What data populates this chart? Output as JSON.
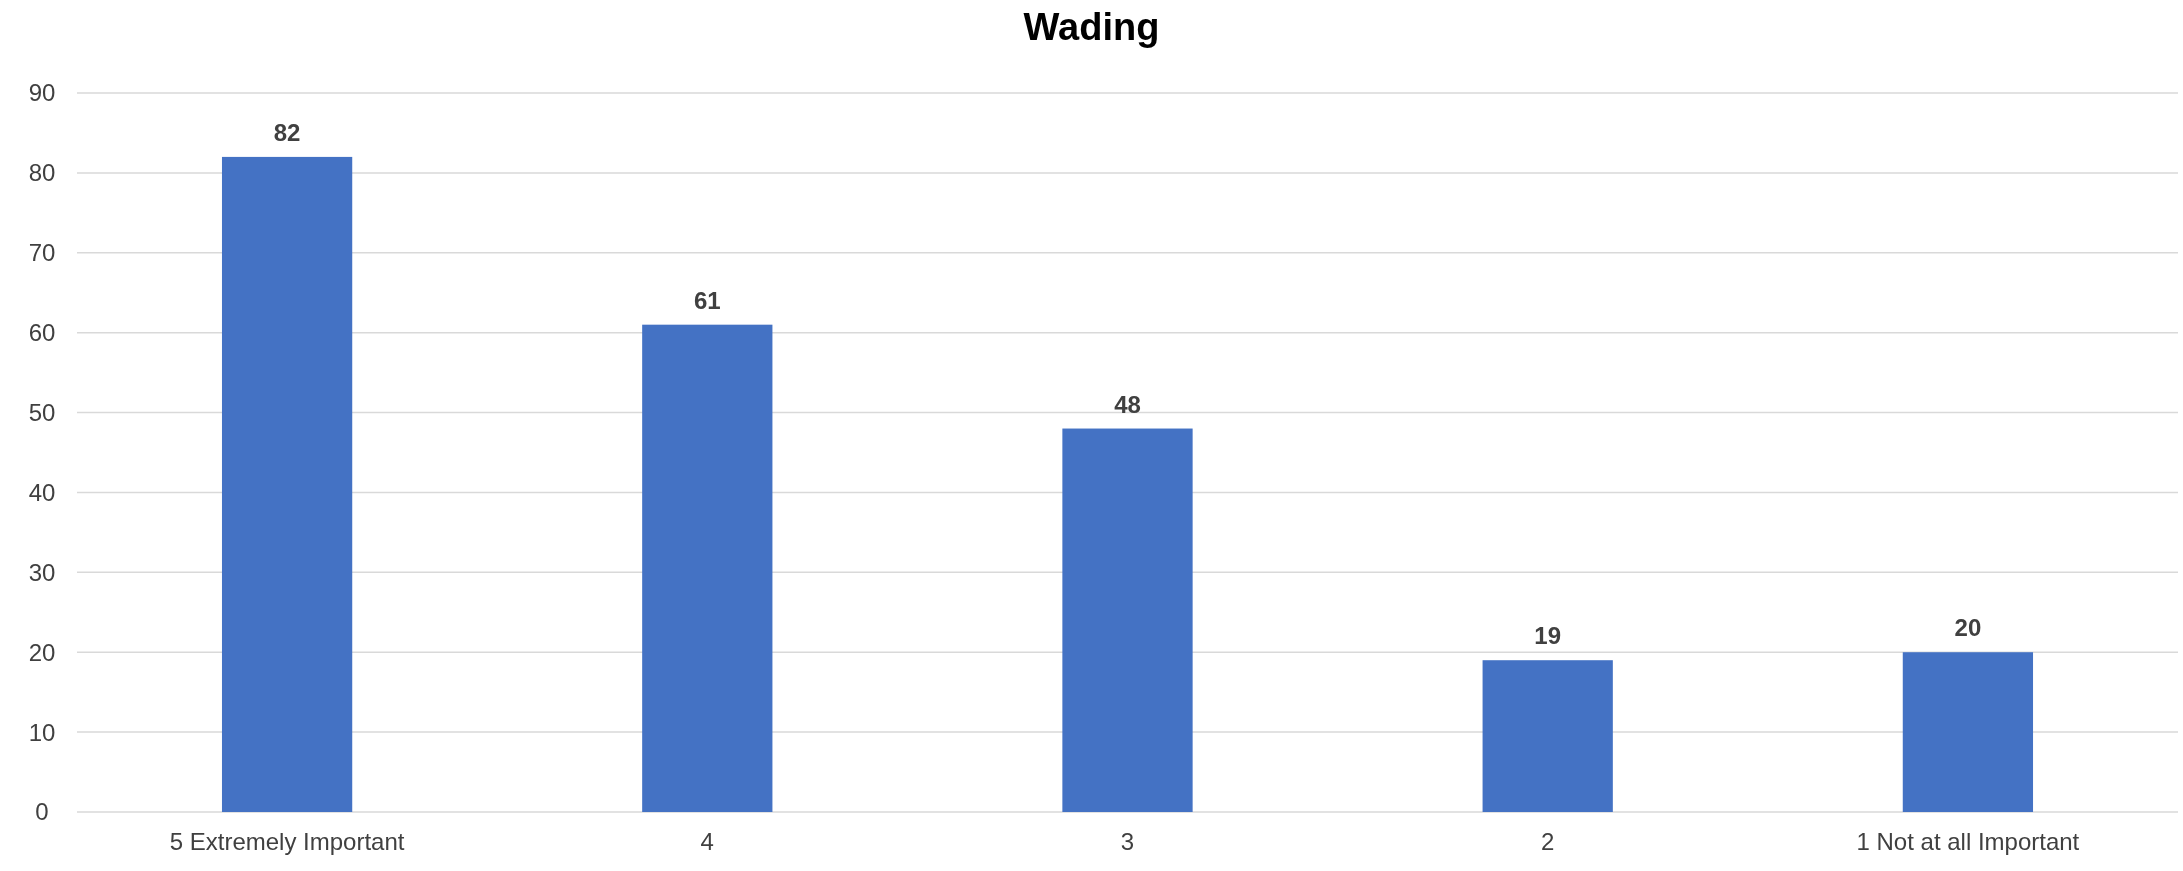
{
  "chart_data": {
    "type": "bar",
    "title": "Wading",
    "categories": [
      "5 Extremely Important",
      "4",
      "3",
      "2",
      "1 Not at all Important"
    ],
    "values": [
      82,
      61,
      48,
      19,
      20
    ],
    "color": "#4472c4",
    "ylim": [
      0,
      90
    ],
    "yticks": [
      0,
      10,
      20,
      30,
      40,
      50,
      60,
      70,
      80,
      90
    ],
    "grid": "y",
    "data_labels": true
  }
}
